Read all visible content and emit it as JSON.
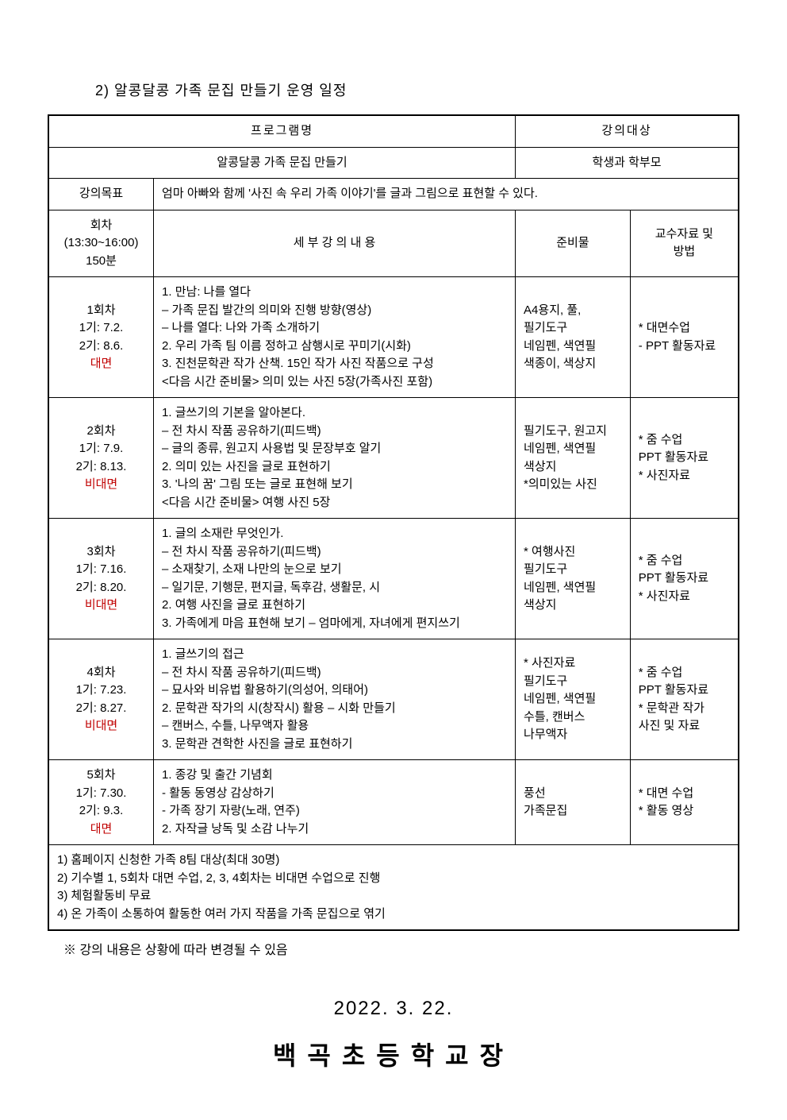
{
  "page": {
    "section_title": "2) 알콩달콩 가족 문집 만들기 운영 일정",
    "background_color": "#ffffff",
    "text_color": "#000000",
    "accent_color": "#c00000"
  },
  "table": {
    "header_row": {
      "program_label": "프로그램명",
      "audience_label": "강의대상"
    },
    "sub_row": {
      "program_name": "알콩달콩 가족 문집 만들기",
      "audience": "학생과 학부모"
    },
    "goal_row": {
      "label": "강의목표",
      "text": "엄마 아빠와 함께 '사진 속 우리 가족 이야기'를 글과 그림으로 표현할 수 있다."
    },
    "column_headers": {
      "session": "회차\n(13:30~16:00)\n150분",
      "content": "세 부 강 의 내 용",
      "materials": "준비물",
      "methods": "교수자료 및\n방법"
    },
    "sessions": [
      {
        "num": "1회차",
        "dates": "1기: 7.2.\n2기: 8.6.",
        "mode": "대면",
        "content": "1. 만남: 나를 열다\n  – 가족 문집 발간의 의미와 진행 방향(영상)\n  – 나를 열다: 나와 가족 소개하기\n2. 우리 가족 팀 이름 정하고 삼행시로 꾸미기(시화)\n3. 진천문학관 작가 산책. 15인 작가 사진 작품으로 구성\n  <다음 시간 준비물> 의미 있는 사진 5장(가족사진 포함)",
        "materials": "A4용지, 풀,\n필기도구\n네임펜, 색연필\n색종이, 색상지",
        "methods": "* 대면수업\n- PPT 활동자료"
      },
      {
        "num": "2회차",
        "dates": "1기: 7.9.\n2기: 8.13.",
        "mode": "비대면",
        "content": "1. 글쓰기의 기본을 알아본다.\n  – 전 차시 작품 공유하기(피드백)\n  – 글의 종류, 원고지 사용법 및 문장부호 알기\n2. 의미 있는 사진을 글로 표현하기\n3. '나의 꿈' 그림 또는 글로 표현해 보기\n  <다음 시간 준비물> 여행 사진 5장",
        "materials": "필기도구, 원고지\n네임펜, 색연필\n색상지\n*의미있는 사진",
        "methods": "* 줌 수업\nPPT 활동자료\n* 사진자료"
      },
      {
        "num": "3회차",
        "dates": "1기: 7.16.\n2기: 8.20.",
        "mode": "비대면",
        "content": "1. 글의 소재란 무엇인가.\n  – 전 차시 작품 공유하기(피드백)\n  – 소재찾기, 소재 나만의 눈으로 보기\n  – 일기문, 기행문, 편지글, 독후감, 생활문, 시\n2. 여행 사진을 글로 표현하기\n3. 가족에게 마음 표현해 보기 – 엄마에게, 자녀에게 편지쓰기",
        "materials": "* 여행사진\n필기도구\n네임펜, 색연필\n색상지",
        "methods": "* 줌 수업\nPPT 활동자료\n* 사진자료"
      },
      {
        "num": "4회차",
        "dates": "1기: 7.23.\n2기: 8.27.",
        "mode": "비대면",
        "content": "1. 글쓰기의 접근\n  – 전 차시 작품 공유하기(피드백)\n  – 묘사와 비유법 활용하기(의성어, 의태어)\n2. 문학관 작가의 시(창작시) 활용 – 시화 만들기\n  – 캔버스, 수틀, 나무액자 활용\n3. 문학관 견학한 사진을 글로 표현하기",
        "materials": "* 사진자료\n필기도구\n네임펜, 색연필\n수틀, 캔버스\n나무액자",
        "methods": "* 줌 수업\nPPT 활동자료\n* 문학관 작가\n사진 및 자료"
      },
      {
        "num": "5회차",
        "dates": "1기: 7.30.\n2기: 9.3.",
        "mode": "대면",
        "content": "1. 종강 및 출간 기념회\n- 활동 동영상 감상하기\n- 가족 장기 자랑(노래, 연주)\n2. 자작글 낭독 및 소감 나누기",
        "materials": "풍선\n가족문집",
        "methods": "* 대면 수업\n* 활동 영상"
      }
    ],
    "notes": [
      "1) 홈페이지 신청한 가족 8팀 대상(최대 30명)",
      "2) 기수별 1, 5회차 대면 수업, 2, 3, 4회차는 비대면 수업으로 진행",
      "3) 체험활동비 무료",
      "4) 온 가족이 소통하여 활동한 여러 가지 작품을 가족 문집으로 엮기"
    ]
  },
  "footnote": "※ 강의 내용은 상황에 따라 변경될 수 있음",
  "date_line": "2022. 3. 22.",
  "principal_line": "백곡초등학교장"
}
